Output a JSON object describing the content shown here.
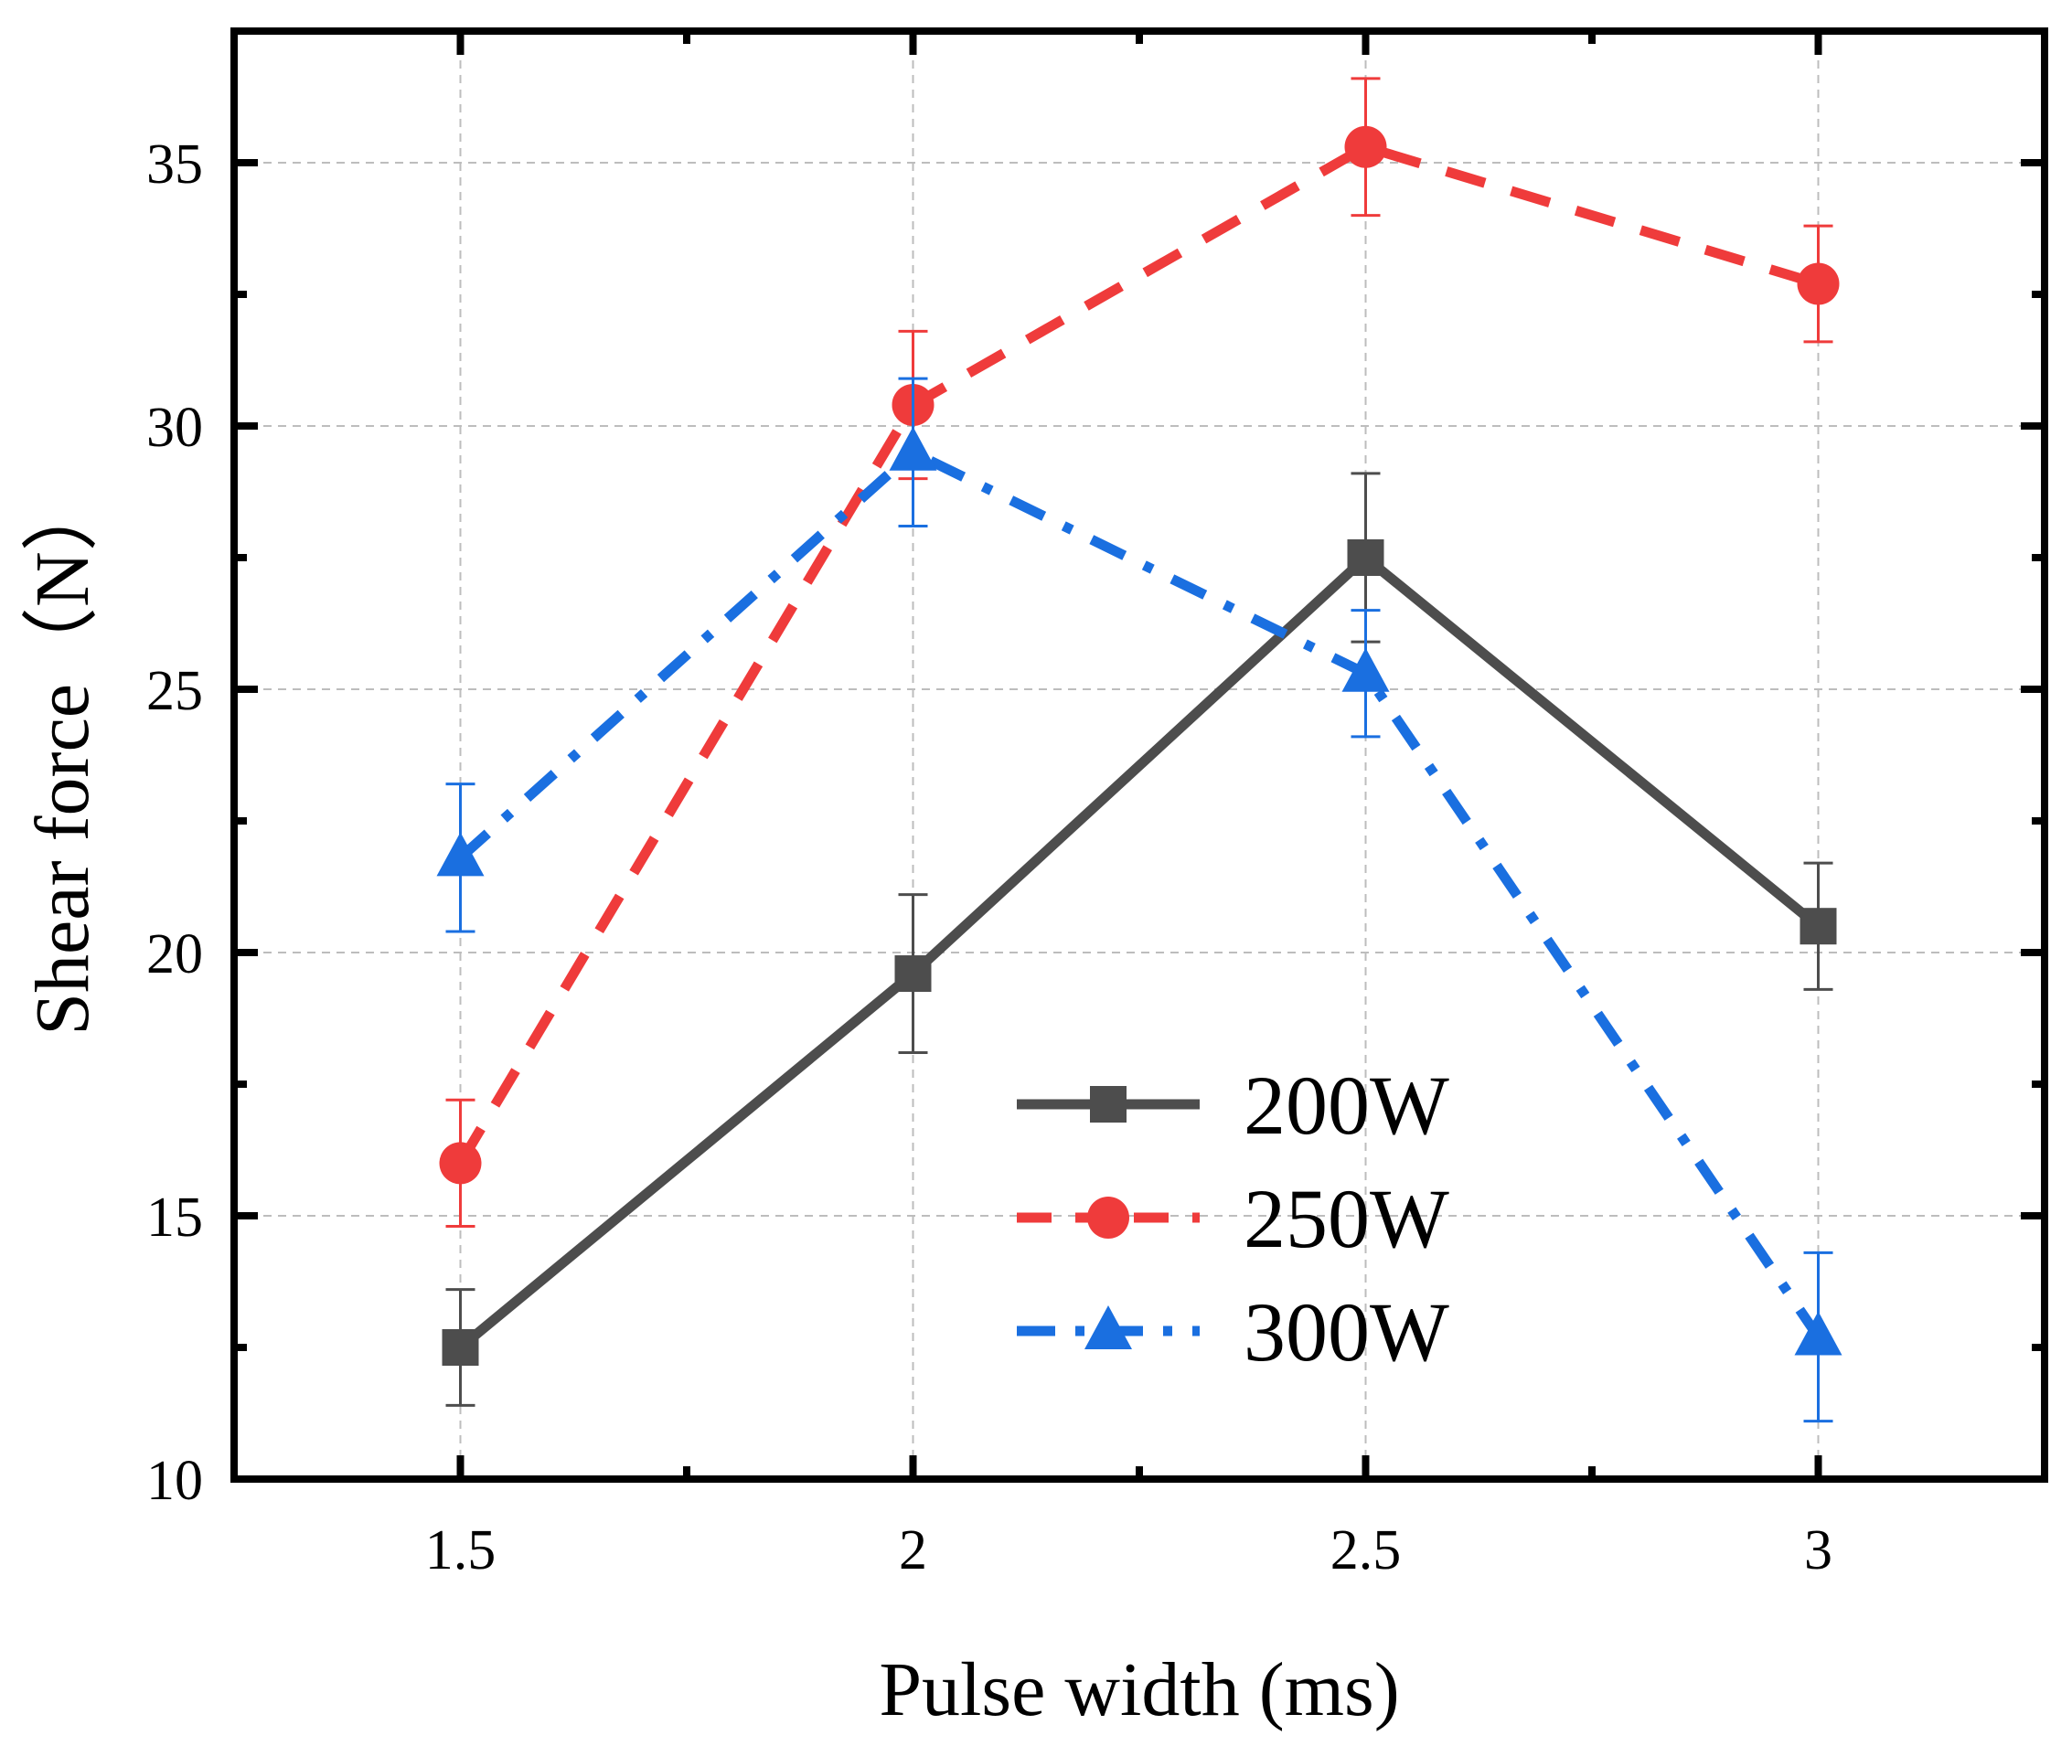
{
  "chart_data": {
    "type": "line",
    "title": "",
    "xlabel": "Pulse width (ms)",
    "ylabel": "Shear force（N）",
    "xlim": [
      1.25,
      3.25
    ],
    "ylim": [
      10,
      37.5
    ],
    "x": [
      1.5,
      2,
      2.5,
      3
    ],
    "x_tick_labels": [
      "1.5",
      "2",
      "2.5",
      "3"
    ],
    "y_ticks": [
      10,
      15,
      20,
      25,
      30,
      35
    ],
    "y_tick_labels": [
      "10",
      "15",
      "20",
      "25",
      "30",
      "35"
    ],
    "grid": true,
    "legend_position": "lower-right",
    "series": [
      {
        "name": "200W",
        "values": [
          12.5,
          19.6,
          27.5,
          20.5
        ],
        "errors": [
          1.1,
          1.5,
          1.6,
          1.2
        ],
        "color": "#4d4d4d",
        "marker": "square",
        "line_style": "solid"
      },
      {
        "name": "250W",
        "values": [
          16.0,
          30.4,
          35.3,
          32.7
        ],
        "errors": [
          1.2,
          1.4,
          1.3,
          1.1
        ],
        "color": "#ef3b3b",
        "marker": "circle",
        "line_style": "dashed"
      },
      {
        "name": "300W",
        "values": [
          21.8,
          29.5,
          25.3,
          12.7
        ],
        "errors": [
          1.4,
          1.4,
          1.2,
          1.6
        ],
        "color": "#1a6fe0",
        "marker": "triangle",
        "line_style": "dash-dot"
      }
    ]
  }
}
